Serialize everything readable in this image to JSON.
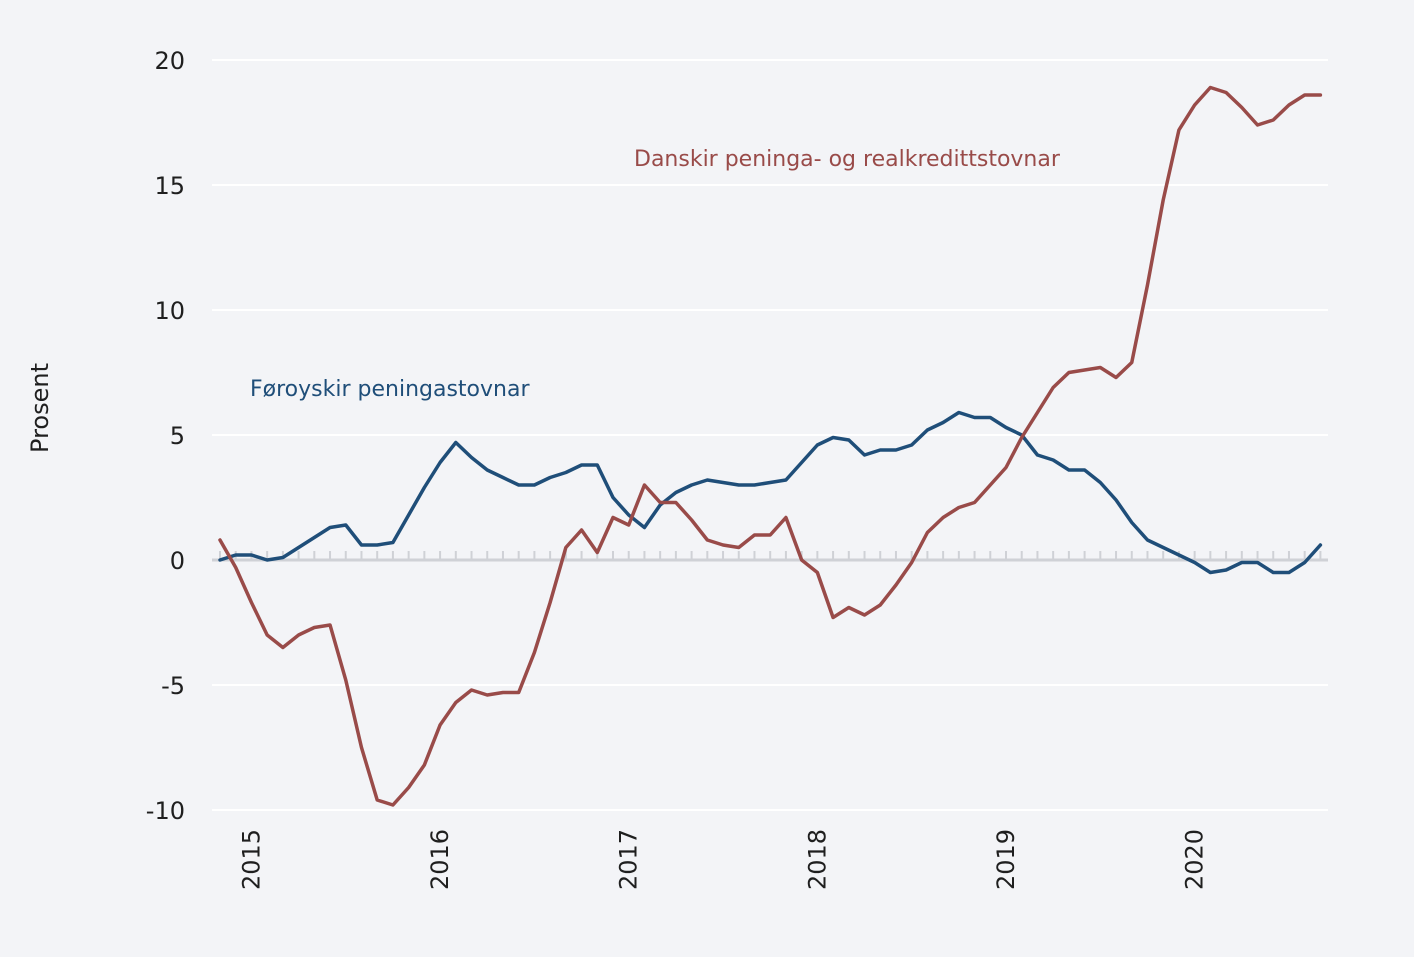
{
  "chart_data": {
    "type": "line",
    "ylabel": "Prosent",
    "ylim": [
      -10,
      20
    ],
    "yticks": [
      "-10",
      "-5",
      "0",
      "5",
      "10",
      "15",
      "20"
    ],
    "xticks": [
      "2015",
      "2016",
      "2017",
      "2018",
      "2019",
      "2020"
    ],
    "grid": true,
    "x_start": "2014-12",
    "series": [
      {
        "name": "Føroyskir peningastovnar",
        "color": "#1f4e79",
        "label_position": "left",
        "values": [
          0.0,
          0.2,
          0.2,
          0.0,
          0.1,
          0.5,
          0.9,
          1.3,
          1.4,
          0.6,
          0.6,
          0.7,
          1.8,
          2.9,
          3.9,
          4.7,
          4.1,
          3.6,
          3.3,
          3.0,
          3.0,
          3.3,
          3.5,
          3.8,
          3.8,
          2.5,
          1.8,
          1.3,
          2.2,
          2.7,
          3.0,
          3.2,
          3.1,
          3.0,
          3.0,
          3.1,
          3.2,
          3.9,
          4.6,
          4.9,
          4.8,
          4.2,
          4.4,
          4.4,
          4.6,
          5.2,
          5.5,
          5.9,
          5.7,
          5.7,
          5.3,
          5.0,
          4.2,
          4.0,
          3.6,
          3.6,
          3.1,
          2.4,
          1.5,
          0.8,
          0.5,
          0.2,
          -0.1,
          -0.5,
          -0.4,
          -0.1,
          -0.1,
          -0.5,
          -0.5,
          -0.1,
          0.6
        ]
      },
      {
        "name": "Danskir peninga- og realkredittstovnar",
        "color": "#994b49",
        "label_position": "top-center",
        "values": [
          0.8,
          -0.3,
          -1.7,
          -3.0,
          -3.5,
          -3.0,
          -2.7,
          -2.6,
          -4.8,
          -7.5,
          -9.6,
          -9.8,
          -9.1,
          -8.2,
          -6.6,
          -5.7,
          -5.2,
          -5.4,
          -5.3,
          -5.3,
          -3.7,
          -1.7,
          0.5,
          1.2,
          0.3,
          1.7,
          1.4,
          3.0,
          2.3,
          2.3,
          1.6,
          0.8,
          0.6,
          0.5,
          1.0,
          1.0,
          1.7,
          0.0,
          -0.5,
          -2.3,
          -1.9,
          -2.2,
          -1.8,
          -1.0,
          -0.1,
          1.1,
          1.7,
          2.1,
          2.3,
          3.0,
          3.7,
          4.9,
          5.9,
          6.9,
          7.5,
          7.6,
          7.7,
          7.3,
          7.9,
          11.0,
          14.4,
          17.2,
          18.2,
          18.9,
          18.7,
          18.1,
          17.4,
          17.6,
          18.2,
          18.6,
          18.6
        ]
      }
    ]
  }
}
